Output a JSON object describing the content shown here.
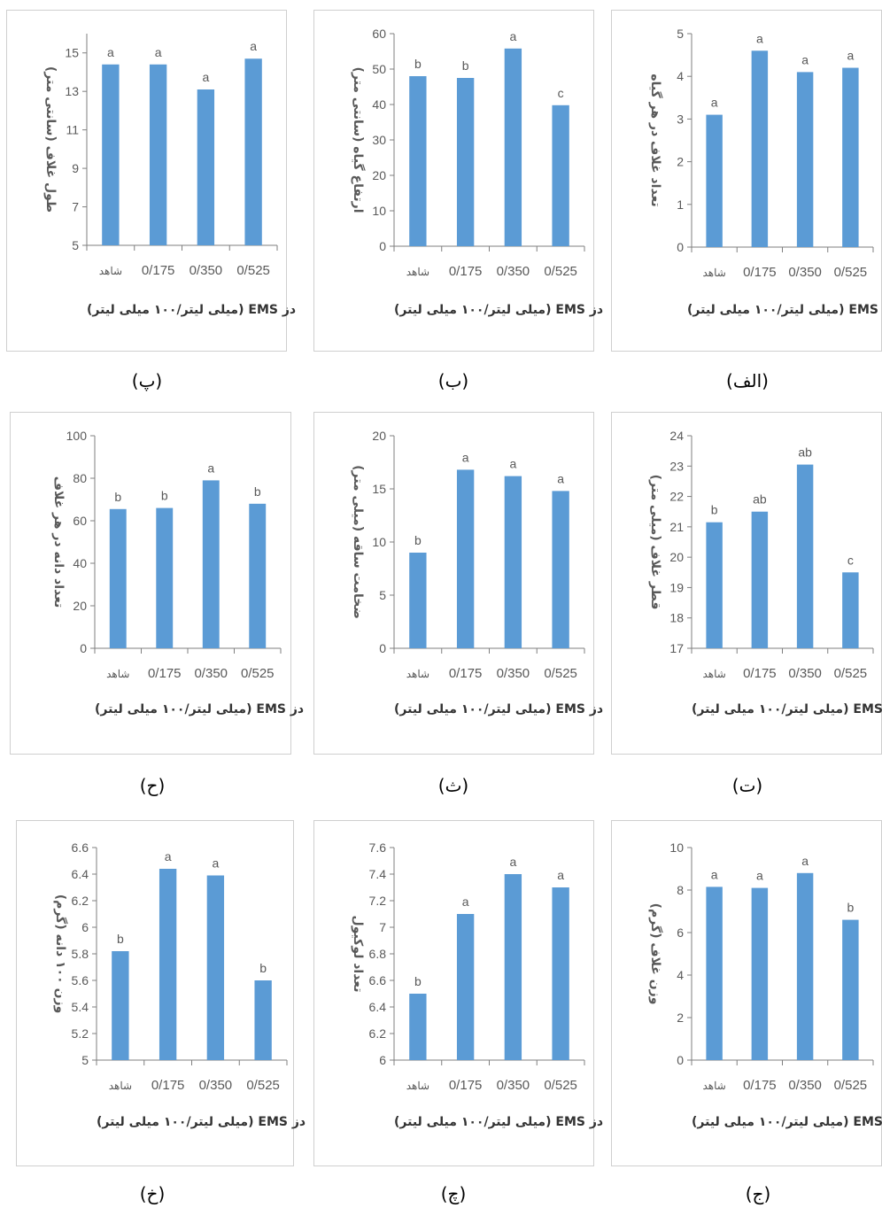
{
  "chart_data": [
    {
      "id": "p1",
      "type": "bar",
      "caption": "(الف)",
      "ylabel": "تعداد غلاف در هر گیاه",
      "xlabel": "دز EMS (میلی لیتر/۱۰۰ میلی لیتر)",
      "categories": [
        "شاهد",
        "0/175",
        "0/350",
        "0/525"
      ],
      "values": [
        3.1,
        4.6,
        4.1,
        4.2
      ],
      "letters": [
        "a",
        "a",
        "a",
        "a"
      ],
      "ylim": [
        0,
        5
      ],
      "yticks": [
        "0",
        "1",
        "2",
        "3",
        "4",
        "5"
      ]
    },
    {
      "id": "p2",
      "type": "bar",
      "caption": "(ب)",
      "ylabel": "ارتفاع گیاه (سانتی متر)",
      "xlabel": "دز EMS (میلی لیتر/۱۰۰ میلی لیتر)",
      "categories": [
        "شاهد",
        "0/175",
        "0/350",
        "0/525"
      ],
      "values": [
        48,
        47.5,
        55.8,
        39.8
      ],
      "letters": [
        "b",
        "b",
        "a",
        "c"
      ],
      "ylim": [
        0,
        60
      ],
      "yticks": [
        "0",
        "10",
        "20",
        "30",
        "40",
        "50",
        "60"
      ]
    },
    {
      "id": "p3",
      "type": "bar",
      "caption": "(پ)",
      "ylabel": "طول غلاف (سانتی متر)",
      "xlabel": "دز EMS (میلی لیتر/۱۰۰ میلی لیتر)",
      "categories": [
        "شاهد",
        "0/175",
        "0/350",
        "0/525"
      ],
      "values": [
        14.4,
        14.4,
        13.1,
        14.7
      ],
      "letters": [
        "a",
        "a",
        "a",
        "a"
      ],
      "ylim": [
        5,
        16
      ],
      "yticks": [
        "5",
        "7",
        "9",
        "11",
        "13",
        "15"
      ]
    },
    {
      "id": "p4",
      "type": "bar",
      "caption": "(ت)",
      "ylabel": "قطر غلاف (میلی متر)",
      "xlabel": "دز EMS (میلی لیتر/۱۰۰ میلی لیتر)",
      "categories": [
        "شاهد",
        "0/175",
        "0/350",
        "0/525"
      ],
      "values": [
        21.15,
        21.5,
        23.05,
        19.5
      ],
      "letters": [
        "b",
        "ab",
        "ab",
        "c"
      ],
      "ylim": [
        17,
        24
      ],
      "yticks": [
        "17",
        "18",
        "19",
        "20",
        "21",
        "22",
        "23",
        "24"
      ]
    },
    {
      "id": "p5",
      "type": "bar",
      "caption": "(ث)",
      "ylabel": "ضخامت ساقه (میلی متر)",
      "xlabel": "دز EMS (میلی لیتر/۱۰۰ میلی لیتر)",
      "categories": [
        "شاهد",
        "0/175",
        "0/350",
        "0/525"
      ],
      "values": [
        9.0,
        16.8,
        16.2,
        14.8
      ],
      "letters": [
        "b",
        "a",
        "a",
        "a"
      ],
      "ylim": [
        0,
        20
      ],
      "yticks": [
        "0",
        "5",
        "10",
        "15",
        "20"
      ]
    },
    {
      "id": "p6",
      "type": "bar",
      "caption": "(ح)",
      "ylabel": "تعداد دانه در هر غلاف",
      "xlabel": "دز EMS (میلی لیتر/۱۰۰ میلی لیتر)",
      "categories": [
        "شاهد",
        "0/175",
        "0/350",
        "0/525"
      ],
      "values": [
        65.5,
        66,
        79,
        68
      ],
      "letters": [
        "b",
        "b",
        "a",
        "b"
      ],
      "ylim": [
        0,
        100
      ],
      "yticks": [
        "0",
        "20",
        "40",
        "60",
        "80",
        "100"
      ]
    },
    {
      "id": "p7",
      "type": "bar",
      "caption": "(ج)",
      "ylabel": "وزن غلاف (گرم)",
      "xlabel": "دز EMS (میلی لیتر/۱۰۰ میلی لیتر)",
      "categories": [
        "شاهد",
        "0/175",
        "0/350",
        "0/525"
      ],
      "values": [
        8.15,
        8.1,
        8.8,
        6.6
      ],
      "letters": [
        "a",
        "a",
        "a",
        "b"
      ],
      "ylim": [
        0,
        10
      ],
      "yticks": [
        "0",
        "2",
        "4",
        "6",
        "8",
        "10"
      ]
    },
    {
      "id": "p8",
      "type": "bar",
      "caption": "(چ)",
      "ylabel": "تعداد لوکیول",
      "xlabel": "دز EMS (میلی لیتر/۱۰۰ میلی لیتر)",
      "categories": [
        "شاهد",
        "0/175",
        "0/350",
        "0/525"
      ],
      "values": [
        6.5,
        7.1,
        7.4,
        7.3
      ],
      "letters": [
        "b",
        "a",
        "a",
        "a"
      ],
      "ylim": [
        6,
        7.6
      ],
      "yticks": [
        "6",
        "6.2",
        "6.4",
        "6.6",
        "6.8",
        "7",
        "7.2",
        "7.4",
        "7.6"
      ]
    },
    {
      "id": "p9",
      "type": "bar",
      "caption": "(خ)",
      "ylabel": "وزن ۱۰۰ دانه (گرم)",
      "xlabel": "دز EMS (میلی لیتر/۱۰۰ میلی لیتر)",
      "categories": [
        "شاهد",
        "0/175",
        "0/350",
        "0/525"
      ],
      "values": [
        5.82,
        6.44,
        6.39,
        5.6
      ],
      "letters": [
        "b",
        "a",
        "a",
        "b"
      ],
      "ylim": [
        5,
        6.6
      ],
      "yticks": [
        "5",
        "5.2",
        "5.4",
        "5.6",
        "5.8",
        "6",
        "6.2",
        "6.4",
        "6.6"
      ]
    }
  ],
  "colors": {
    "bar": "#5b9bd5",
    "axis": "#7f7f7f",
    "text": "#595959",
    "border": "#cfcfcf"
  }
}
